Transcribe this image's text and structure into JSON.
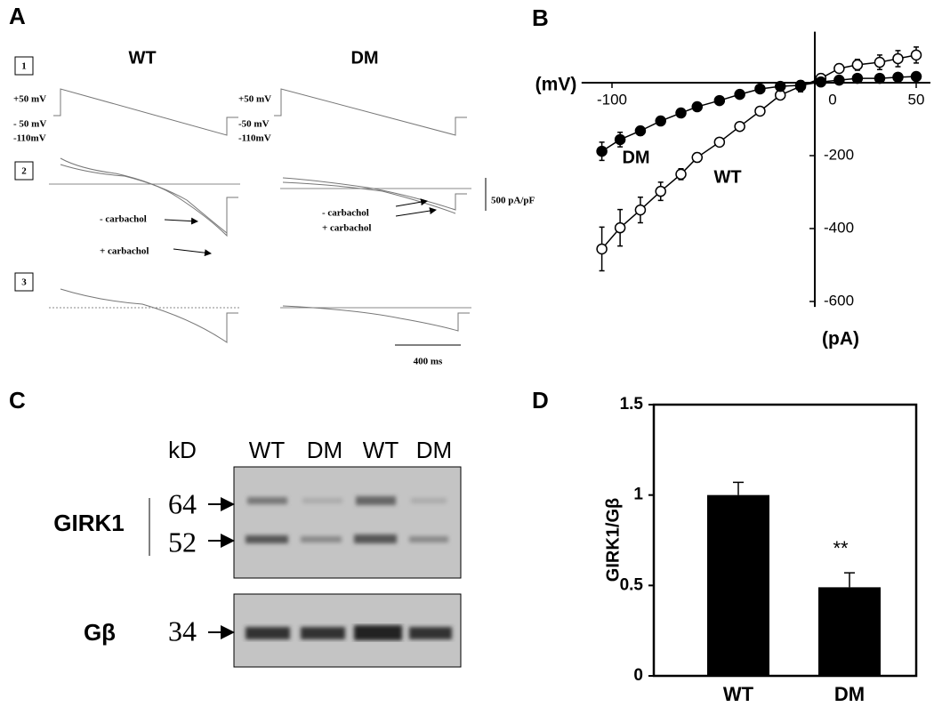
{
  "panel_labels": [
    "A",
    "B",
    "C",
    "D"
  ],
  "panel_a": {
    "columns": [
      "WT",
      "DM"
    ],
    "rows": [
      "1",
      "2",
      "3"
    ],
    "voltage_labels_wt": [
      "+50 mV",
      "- 50 mV",
      "-110mV"
    ],
    "voltage_labels_dm": [
      "+50 mV",
      "-50 mV",
      "-110mV"
    ],
    "annotations_wt": [
      "- carbachol",
      "+ carbachol"
    ],
    "annotations_dm": [
      "- carbachol",
      "+ carbachol"
    ],
    "current_scale": "500 pA/pF",
    "time_scale": "400 ms"
  },
  "panel_c": {
    "unit": "kD",
    "lanes": [
      "WT",
      "DM",
      "WT",
      "DM"
    ],
    "proteins": [
      "GIRK1",
      "Gβ"
    ],
    "markers": [
      "64",
      "52",
      "34"
    ]
  },
  "chart_data": [
    {
      "type": "line",
      "xlabel": "(mV)",
      "ylabel": "(pA)",
      "x": [
        -105,
        -96,
        -86,
        -76,
        -66,
        -58,
        -47,
        -37,
        -27,
        -17,
        -7,
        3,
        12,
        21,
        32,
        41,
        50
      ],
      "series": [
        {
          "name": "WT",
          "marker": "open",
          "values": [
            -456,
            -398,
            -349,
            -298,
            -251,
            -205,
            -163,
            -120,
            -78,
            -34,
            -10,
            12,
            39,
            49,
            56,
            66,
            76
          ],
          "errors": [
            60,
            50,
            35,
            25,
            15,
            12,
            8,
            8,
            8,
            8,
            15,
            12,
            12,
            15,
            20,
            22,
            22
          ]
        },
        {
          "name": "DM",
          "marker": "filled",
          "values": [
            -188,
            -156,
            -132,
            -105,
            -83,
            -66,
            -49,
            -32,
            -17,
            -10,
            -7,
            2,
            7,
            12,
            12,
            15,
            17
          ],
          "errors": [
            25,
            20,
            12,
            8,
            5,
            4,
            4,
            4,
            4,
            4,
            8,
            5,
            5,
            5,
            5,
            5,
            5
          ]
        }
      ],
      "xlim": [
        -115,
        57
      ],
      "ylim": [
        -615,
        140
      ],
      "xticks": [
        -100,
        0,
        50
      ],
      "yticks": [
        -200,
        -400,
        -600
      ]
    },
    {
      "type": "bar",
      "ylabel": "GIRK1/Gβ",
      "categories": [
        "WT",
        "DM"
      ],
      "values": [
        1.0,
        0.49
      ],
      "errors": [
        0.07,
        0.08
      ],
      "color": "#000000",
      "annotation": "**",
      "ylim": [
        0,
        1.5
      ],
      "yticks": [
        0,
        0.5,
        1,
        1.5
      ]
    }
  ]
}
